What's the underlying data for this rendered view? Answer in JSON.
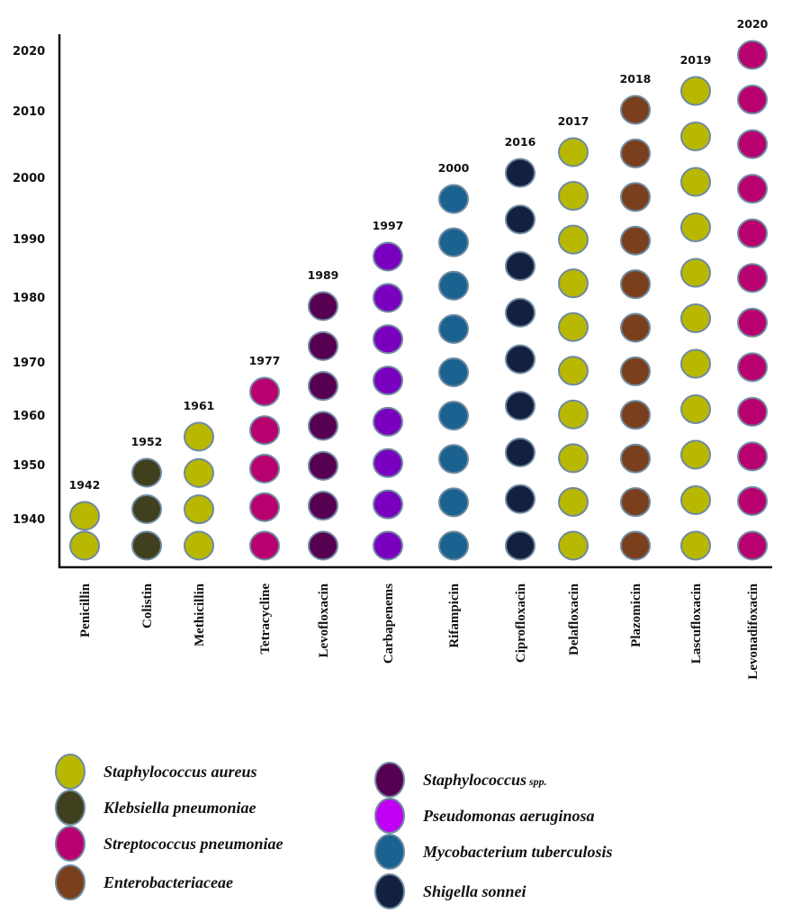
{
  "chart_data": {
    "type": "scatter",
    "title": "",
    "xlabel": "",
    "ylabel": "",
    "y_ticks": [
      "1940",
      "1950",
      "1960",
      "1970",
      "1980",
      "1990",
      "2000",
      "2010",
      "2020"
    ],
    "grid": false,
    "legend_placement": "bottom",
    "organisms": [
      {
        "key": "sa",
        "name": "Staphylococcus aureus",
        "color": "#b9b800"
      },
      {
        "key": "kp",
        "name": "Klebsiella pneumoniae",
        "color": "#403f1e"
      },
      {
        "key": "sp",
        "name": "Streptococcus pneumoniae",
        "color": "#b8006f"
      },
      {
        "key": "en",
        "name": "Enterobacteriaceae",
        "color": "#7a3f1c"
      },
      {
        "key": "ss",
        "name": "Staphylococcus",
        "name_suffix": "spp.",
        "color": "#570052"
      },
      {
        "key": "pa",
        "name": "Pseudomonas aeruginosa",
        "color": "#c000f2",
        "dot_color": "#7a00c0"
      },
      {
        "key": "mt",
        "name": "Mycobacterium tuberculosis",
        "color": "#1a6290"
      },
      {
        "key": "sh",
        "name": "Shigella sonnei",
        "color": "#14203f"
      }
    ],
    "columns": [
      {
        "drug": "Penicillin",
        "year": "1942",
        "organism": "sa",
        "count": 2
      },
      {
        "drug": "Colistin",
        "year": "1952",
        "organism": "kp",
        "count": 3
      },
      {
        "drug": "Methicillin",
        "year": "1961",
        "organism": "sa",
        "count": 4
      },
      {
        "drug": "Tetracycline",
        "year": "1977",
        "organism": "sp",
        "count": 5
      },
      {
        "drug": "Levofloxacin",
        "year": "1989",
        "organism": "ss",
        "count": 7
      },
      {
        "drug": "Carbapenems",
        "year": "1997",
        "organism": "pa",
        "count": 8
      },
      {
        "drug": "Rifampicin",
        "year": "2000",
        "organism": "mt",
        "count": 9
      },
      {
        "drug": "Ciprofloxacin",
        "year": "2016",
        "organism": "sh",
        "count": 9
      },
      {
        "drug": "Delafloxacin",
        "year": "2017",
        "organism": "sa",
        "count": 10
      },
      {
        "drug": "Plazomicin",
        "year": "2018",
        "organism": "en",
        "count": 11
      },
      {
        "drug": "Lascufloxacin",
        "year": "2019",
        "organism": "sa",
        "count": 11
      },
      {
        "drug": "Levonadifoxacin",
        "year": "2020",
        "organism": "sp",
        "count": 12
      }
    ]
  }
}
